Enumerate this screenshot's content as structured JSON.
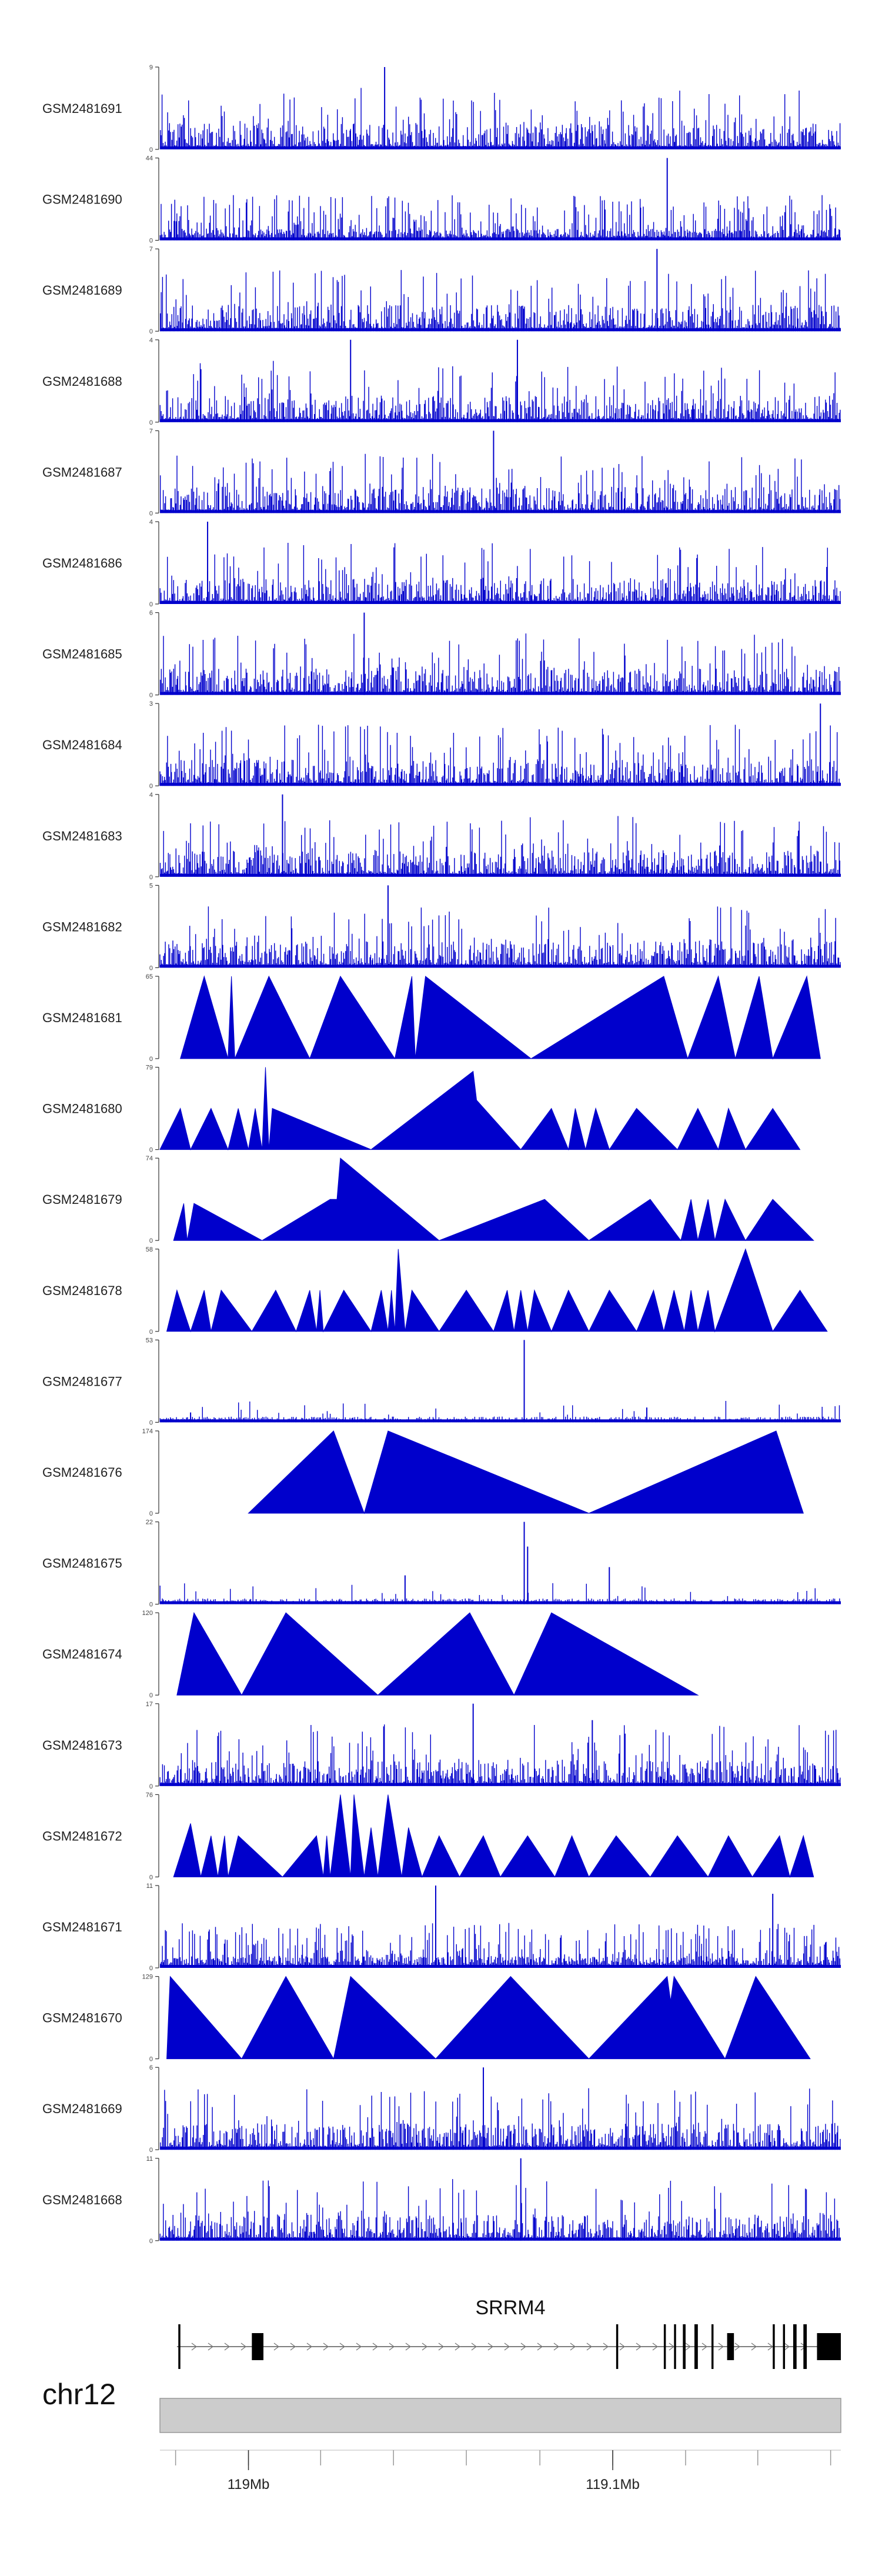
{
  "chart_data": {
    "type": "genome-browser-coverage",
    "track_color": "#0000cc",
    "tracks": [
      {
        "name": "GSM2481691",
        "ymax": 9,
        "ymin": 0,
        "style": "dense",
        "seed": 11,
        "peaks": [
          [
            0.33,
            1.0
          ]
        ]
      },
      {
        "name": "GSM2481690",
        "ymax": 44,
        "ymin": 0,
        "style": "spiky",
        "seed": 12,
        "peaks": [
          [
            0.745,
            1.0
          ]
        ]
      },
      {
        "name": "GSM2481689",
        "ymax": 7,
        "ymin": 0,
        "style": "dense",
        "seed": 13,
        "peaks": [
          [
            0.73,
            1.0
          ]
        ]
      },
      {
        "name": "GSM2481688",
        "ymax": 4,
        "ymin": 0,
        "style": "dense",
        "seed": 14,
        "peaks": [
          [
            0.28,
            1.0
          ],
          [
            0.525,
            1.0
          ]
        ]
      },
      {
        "name": "GSM2481687",
        "ymax": 7,
        "ymin": 0,
        "style": "dense",
        "seed": 15,
        "peaks": [
          [
            0.49,
            1.0
          ]
        ]
      },
      {
        "name": "GSM2481686",
        "ymax": 4,
        "ymin": 0,
        "style": "dense",
        "seed": 16,
        "peaks": [
          [
            0.07,
            1.0
          ]
        ]
      },
      {
        "name": "GSM2481685",
        "ymax": 6,
        "ymin": 0,
        "style": "dense",
        "seed": 17,
        "peaks": [
          [
            0.3,
            1.0
          ]
        ]
      },
      {
        "name": "GSM2481684",
        "ymax": 3,
        "ymin": 0,
        "style": "dense",
        "seed": 18,
        "peaks": [
          [
            0.97,
            1.0
          ]
        ]
      },
      {
        "name": "GSM2481683",
        "ymax": 4,
        "ymin": 0,
        "style": "dense",
        "seed": 19,
        "peaks": [
          [
            0.18,
            1.0
          ]
        ]
      },
      {
        "name": "GSM2481682",
        "ymax": 5,
        "ymin": 0,
        "style": "dense",
        "seed": 20,
        "peaks": [
          [
            0.335,
            1.0
          ]
        ]
      },
      {
        "name": "GSM2481681",
        "ymax": 65,
        "ymin": 0,
        "style": "triangles",
        "seed": 21,
        "points": [
          [
            0.03,
            0
          ],
          [
            0.065,
            1
          ],
          [
            0.1,
            0
          ],
          [
            0.105,
            1
          ],
          [
            0.11,
            0
          ],
          [
            0.16,
            1
          ],
          [
            0.22,
            0
          ],
          [
            0.265,
            1
          ],
          [
            0.345,
            0
          ],
          [
            0.37,
            1
          ],
          [
            0.375,
            0
          ],
          [
            0.39,
            1
          ],
          [
            0.545,
            0
          ],
          [
            0.74,
            1
          ],
          [
            0.775,
            0
          ],
          [
            0.82,
            1
          ],
          [
            0.845,
            0
          ],
          [
            0.88,
            1
          ],
          [
            0.9,
            0
          ],
          [
            0.95,
            1
          ],
          [
            0.97,
            0
          ]
        ]
      },
      {
        "name": "GSM2481680",
        "ymax": 79,
        "ymin": 0,
        "style": "triangles",
        "seed": 22,
        "points": [
          [
            0.0,
            0
          ],
          [
            0.03,
            0.5
          ],
          [
            0.045,
            0
          ],
          [
            0.075,
            0.5
          ],
          [
            0.1,
            0
          ],
          [
            0.115,
            0.5
          ],
          [
            0.13,
            0
          ],
          [
            0.14,
            0.5
          ],
          [
            0.15,
            0
          ],
          [
            0.155,
            1
          ],
          [
            0.16,
            0
          ],
          [
            0.165,
            0.5
          ],
          [
            0.31,
            0
          ],
          [
            0.46,
            0.95
          ],
          [
            0.465,
            0.6
          ],
          [
            0.53,
            0
          ],
          [
            0.575,
            0.5
          ],
          [
            0.6,
            0
          ],
          [
            0.61,
            0.5
          ],
          [
            0.625,
            0
          ],
          [
            0.64,
            0.5
          ],
          [
            0.66,
            0
          ],
          [
            0.7,
            0.5
          ],
          [
            0.76,
            0
          ],
          [
            0.79,
            0.5
          ],
          [
            0.82,
            0
          ],
          [
            0.835,
            0.5
          ],
          [
            0.86,
            0
          ],
          [
            0.9,
            0.5
          ],
          [
            0.94,
            0
          ]
        ]
      },
      {
        "name": "GSM2481679",
        "ymax": 74,
        "ymin": 0,
        "style": "triangles",
        "seed": 23,
        "points": [
          [
            0.02,
            0
          ],
          [
            0.035,
            0.45
          ],
          [
            0.04,
            0
          ],
          [
            0.05,
            0.45
          ],
          [
            0.15,
            0
          ],
          [
            0.25,
            0.5
          ],
          [
            0.26,
            0.5
          ],
          [
            0.265,
            1
          ],
          [
            0.41,
            0
          ],
          [
            0.565,
            0.5
          ],
          [
            0.63,
            0
          ],
          [
            0.72,
            0.5
          ],
          [
            0.765,
            0
          ],
          [
            0.78,
            0.5
          ],
          [
            0.79,
            0
          ],
          [
            0.805,
            0.5
          ],
          [
            0.815,
            0
          ],
          [
            0.83,
            0.5
          ],
          [
            0.86,
            0
          ],
          [
            0.9,
            0.5
          ],
          [
            0.96,
            0
          ]
        ]
      },
      {
        "name": "GSM2481678",
        "ymax": 58,
        "ymin": 0,
        "style": "triangles",
        "seed": 24,
        "points": [
          [
            0.01,
            0
          ],
          [
            0.025,
            0.5
          ],
          [
            0.045,
            0
          ],
          [
            0.065,
            0.5
          ],
          [
            0.075,
            0
          ],
          [
            0.09,
            0.5
          ],
          [
            0.135,
            0
          ],
          [
            0.17,
            0.5
          ],
          [
            0.2,
            0
          ],
          [
            0.22,
            0.5
          ],
          [
            0.23,
            0
          ],
          [
            0.235,
            0.5
          ],
          [
            0.24,
            0
          ],
          [
            0.27,
            0.5
          ],
          [
            0.31,
            0
          ],
          [
            0.325,
            0.5
          ],
          [
            0.335,
            0
          ],
          [
            0.34,
            0.5
          ],
          [
            0.345,
            0
          ],
          [
            0.345,
            0
          ],
          [
            0.35,
            1
          ],
          [
            0.36,
            0
          ],
          [
            0.37,
            0.5
          ],
          [
            0.41,
            0
          ],
          [
            0.45,
            0.5
          ],
          [
            0.49,
            0
          ],
          [
            0.51,
            0.5
          ],
          [
            0.52,
            0
          ],
          [
            0.53,
            0.5
          ],
          [
            0.54,
            0
          ],
          [
            0.55,
            0.5
          ],
          [
            0.575,
            0
          ],
          [
            0.6,
            0.5
          ],
          [
            0.63,
            0
          ],
          [
            0.66,
            0.5
          ],
          [
            0.7,
            0
          ],
          [
            0.725,
            0.5
          ],
          [
            0.74,
            0
          ],
          [
            0.755,
            0.5
          ],
          [
            0.77,
            0
          ],
          [
            0.78,
            0.5
          ],
          [
            0.79,
            0
          ],
          [
            0.805,
            0.5
          ],
          [
            0.815,
            0
          ],
          [
            0.86,
            1
          ],
          [
            0.9,
            0
          ],
          [
            0.94,
            0.5
          ],
          [
            0.98,
            0
          ]
        ]
      },
      {
        "name": "GSM2481677",
        "ymax": 53,
        "ymin": 0,
        "style": "sparse",
        "seed": 25,
        "peaks": [
          [
            0.535,
            1.0
          ],
          [
            0.715,
            0.18
          ],
          [
            0.045,
            0.12
          ]
        ]
      },
      {
        "name": "GSM2481676",
        "ymax": 174,
        "ymin": 0,
        "style": "triangles",
        "seed": 26,
        "points": [
          [
            0.13,
            0
          ],
          [
            0.255,
            1
          ],
          [
            0.3,
            0
          ],
          [
            0.335,
            1
          ],
          [
            0.63,
            0
          ],
          [
            0.905,
            1
          ],
          [
            0.945,
            0
          ]
        ]
      },
      {
        "name": "GSM2481675",
        "ymax": 22,
        "ymin": 0,
        "style": "sparse",
        "seed": 27,
        "peaks": [
          [
            0.535,
            1.0
          ],
          [
            0.54,
            0.7
          ],
          [
            0.66,
            0.45
          ],
          [
            0.36,
            0.35
          ]
        ]
      },
      {
        "name": "GSM2481674",
        "ymax": 120,
        "ymin": 0,
        "style": "triangles",
        "seed": 28,
        "points": [
          [
            0.025,
            0
          ],
          [
            0.05,
            1
          ],
          [
            0.12,
            0
          ],
          [
            0.185,
            1
          ],
          [
            0.32,
            0
          ],
          [
            0.455,
            1
          ],
          [
            0.52,
            0
          ],
          [
            0.575,
            1
          ],
          [
            0.79,
            0
          ]
        ]
      },
      {
        "name": "GSM2481673",
        "ymax": 17,
        "ymin": 0,
        "style": "dense",
        "seed": 29,
        "peaks": [
          [
            0.46,
            1.0
          ],
          [
            0.635,
            0.8
          ]
        ]
      },
      {
        "name": "GSM2481672",
        "ymax": 76,
        "ymin": 0,
        "style": "triangles",
        "seed": 30,
        "points": [
          [
            0.02,
            0
          ],
          [
            0.045,
            0.65
          ],
          [
            0.06,
            0
          ],
          [
            0.075,
            0.5
          ],
          [
            0.085,
            0
          ],
          [
            0.095,
            0.5
          ],
          [
            0.1,
            0
          ],
          [
            0.115,
            0.5
          ],
          [
            0.18,
            0
          ],
          [
            0.23,
            0.5
          ],
          [
            0.24,
            0
          ],
          [
            0.245,
            0.5
          ],
          [
            0.25,
            0
          ],
          [
            0.265,
            1
          ],
          [
            0.28,
            0
          ],
          [
            0.285,
            1
          ],
          [
            0.3,
            0
          ],
          [
            0.31,
            0.6
          ],
          [
            0.32,
            0
          ],
          [
            0.335,
            1
          ],
          [
            0.355,
            0
          ],
          [
            0.365,
            0.6
          ],
          [
            0.385,
            0
          ],
          [
            0.41,
            0.5
          ],
          [
            0.44,
            0
          ],
          [
            0.475,
            0.5
          ],
          [
            0.5,
            0
          ],
          [
            0.54,
            0.5
          ],
          [
            0.58,
            0
          ],
          [
            0.605,
            0.5
          ],
          [
            0.63,
            0
          ],
          [
            0.67,
            0.5
          ],
          [
            0.72,
            0
          ],
          [
            0.76,
            0.5
          ],
          [
            0.805,
            0
          ],
          [
            0.835,
            0.5
          ],
          [
            0.87,
            0
          ],
          [
            0.91,
            0.5
          ],
          [
            0.925,
            0
          ],
          [
            0.945,
            0.5
          ],
          [
            0.96,
            0
          ]
        ]
      },
      {
        "name": "GSM2481671",
        "ymax": 11,
        "ymin": 0,
        "style": "spiky",
        "seed": 31,
        "peaks": [
          [
            0.405,
            1.0
          ],
          [
            0.9,
            0.9
          ]
        ]
      },
      {
        "name": "GSM2481670",
        "ymax": 129,
        "ymin": 0,
        "style": "triangles",
        "seed": 32,
        "points": [
          [
            0.01,
            0
          ],
          [
            0.015,
            1
          ],
          [
            0.12,
            0
          ],
          [
            0.185,
            1
          ],
          [
            0.255,
            0
          ],
          [
            0.28,
            1
          ],
          [
            0.405,
            0
          ],
          [
            0.515,
            1
          ],
          [
            0.63,
            0
          ],
          [
            0.745,
            1
          ],
          [
            0.75,
            0.7
          ],
          [
            0.755,
            1
          ],
          [
            0.83,
            0
          ],
          [
            0.875,
            1
          ],
          [
            0.955,
            0
          ]
        ]
      },
      {
        "name": "GSM2481669",
        "ymax": 6,
        "ymin": 0,
        "style": "dense",
        "seed": 33,
        "peaks": [
          [
            0.475,
            1.0
          ]
        ]
      },
      {
        "name": "GSM2481668",
        "ymax": 11,
        "ymin": 0,
        "style": "dense",
        "seed": 34,
        "peaks": [
          [
            0.53,
            1.0
          ]
        ]
      }
    ],
    "gene": {
      "name": "SRRM4",
      "strand": "+",
      "start": 0.025,
      "end": 1.0,
      "exons": [
        [
          0.027,
          0.03
        ],
        [
          0.135,
          0.152
        ],
        [
          0.67,
          0.673
        ],
        [
          0.74,
          0.743
        ],
        [
          0.755,
          0.758
        ],
        [
          0.768,
          0.772
        ],
        [
          0.785,
          0.79
        ],
        [
          0.81,
          0.813
        ],
        [
          0.833,
          0.843
        ],
        [
          0.9,
          0.903
        ],
        [
          0.915,
          0.918
        ],
        [
          0.93,
          0.935
        ],
        [
          0.945,
          0.95
        ],
        [
          0.965,
          1.0
        ]
      ]
    },
    "chromosome": "chr12",
    "genome_axis": {
      "labels": [
        {
          "pos": 0.13,
          "text": "119Mb"
        },
        {
          "pos": 0.665,
          "text": "119.1Mb"
        }
      ],
      "minor_ticks": [
        0.023,
        0.13,
        0.236,
        0.343,
        0.45,
        0.558,
        0.665,
        0.772,
        0.878,
        0.985
      ]
    }
  }
}
